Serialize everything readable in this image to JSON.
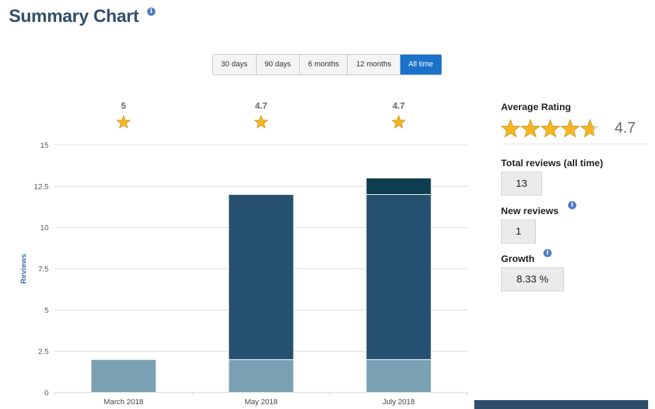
{
  "page": {
    "title": "Summary Chart"
  },
  "ranges": {
    "options": [
      "30 days",
      "90 days",
      "6 months",
      "12 months",
      "All time"
    ],
    "selected": "All time"
  },
  "summary": {
    "average_rating_label": "Average Rating",
    "average_rating_value": "4.7",
    "average_rating": 4.7,
    "total_reviews_label": "Total reviews (all time)",
    "total_reviews_value": "13",
    "new_reviews_label": "New reviews",
    "new_reviews_value": "1",
    "growth_label": "Growth",
    "growth_value": "8.33 %"
  },
  "colors": {
    "title": "#2f4f6b",
    "series_light": "#7aa0b4",
    "series_mid": "#25506f",
    "series_dark": "#0e3d4d",
    "active_button": "#1a73c9",
    "star": "#f5b622",
    "axis_label": "#4a74a8"
  },
  "chart_data": {
    "type": "bar",
    "stacked": true,
    "categories": [
      "March 2018",
      "May 2018",
      "July 2018"
    ],
    "series": [
      {
        "values": [
          2,
          2,
          2
        ],
        "color": "#7aa0b4"
      },
      {
        "values": [
          0,
          10,
          10
        ],
        "color": "#25506f"
      },
      {
        "values": [
          0,
          0,
          1
        ],
        "color": "#0e3d4d"
      }
    ],
    "ratings": [
      "5",
      "4.7",
      "4.7"
    ],
    "ylabel": "Reviews",
    "xlabel": "",
    "ylim": [
      0,
      15
    ],
    "yticks": [
      0,
      2.5,
      5,
      7.5,
      10,
      12.5,
      15
    ],
    "ytick_labels": [
      "0",
      "2.5",
      "5",
      "7.5",
      "10",
      "12.5",
      "15"
    ],
    "grid": true
  }
}
